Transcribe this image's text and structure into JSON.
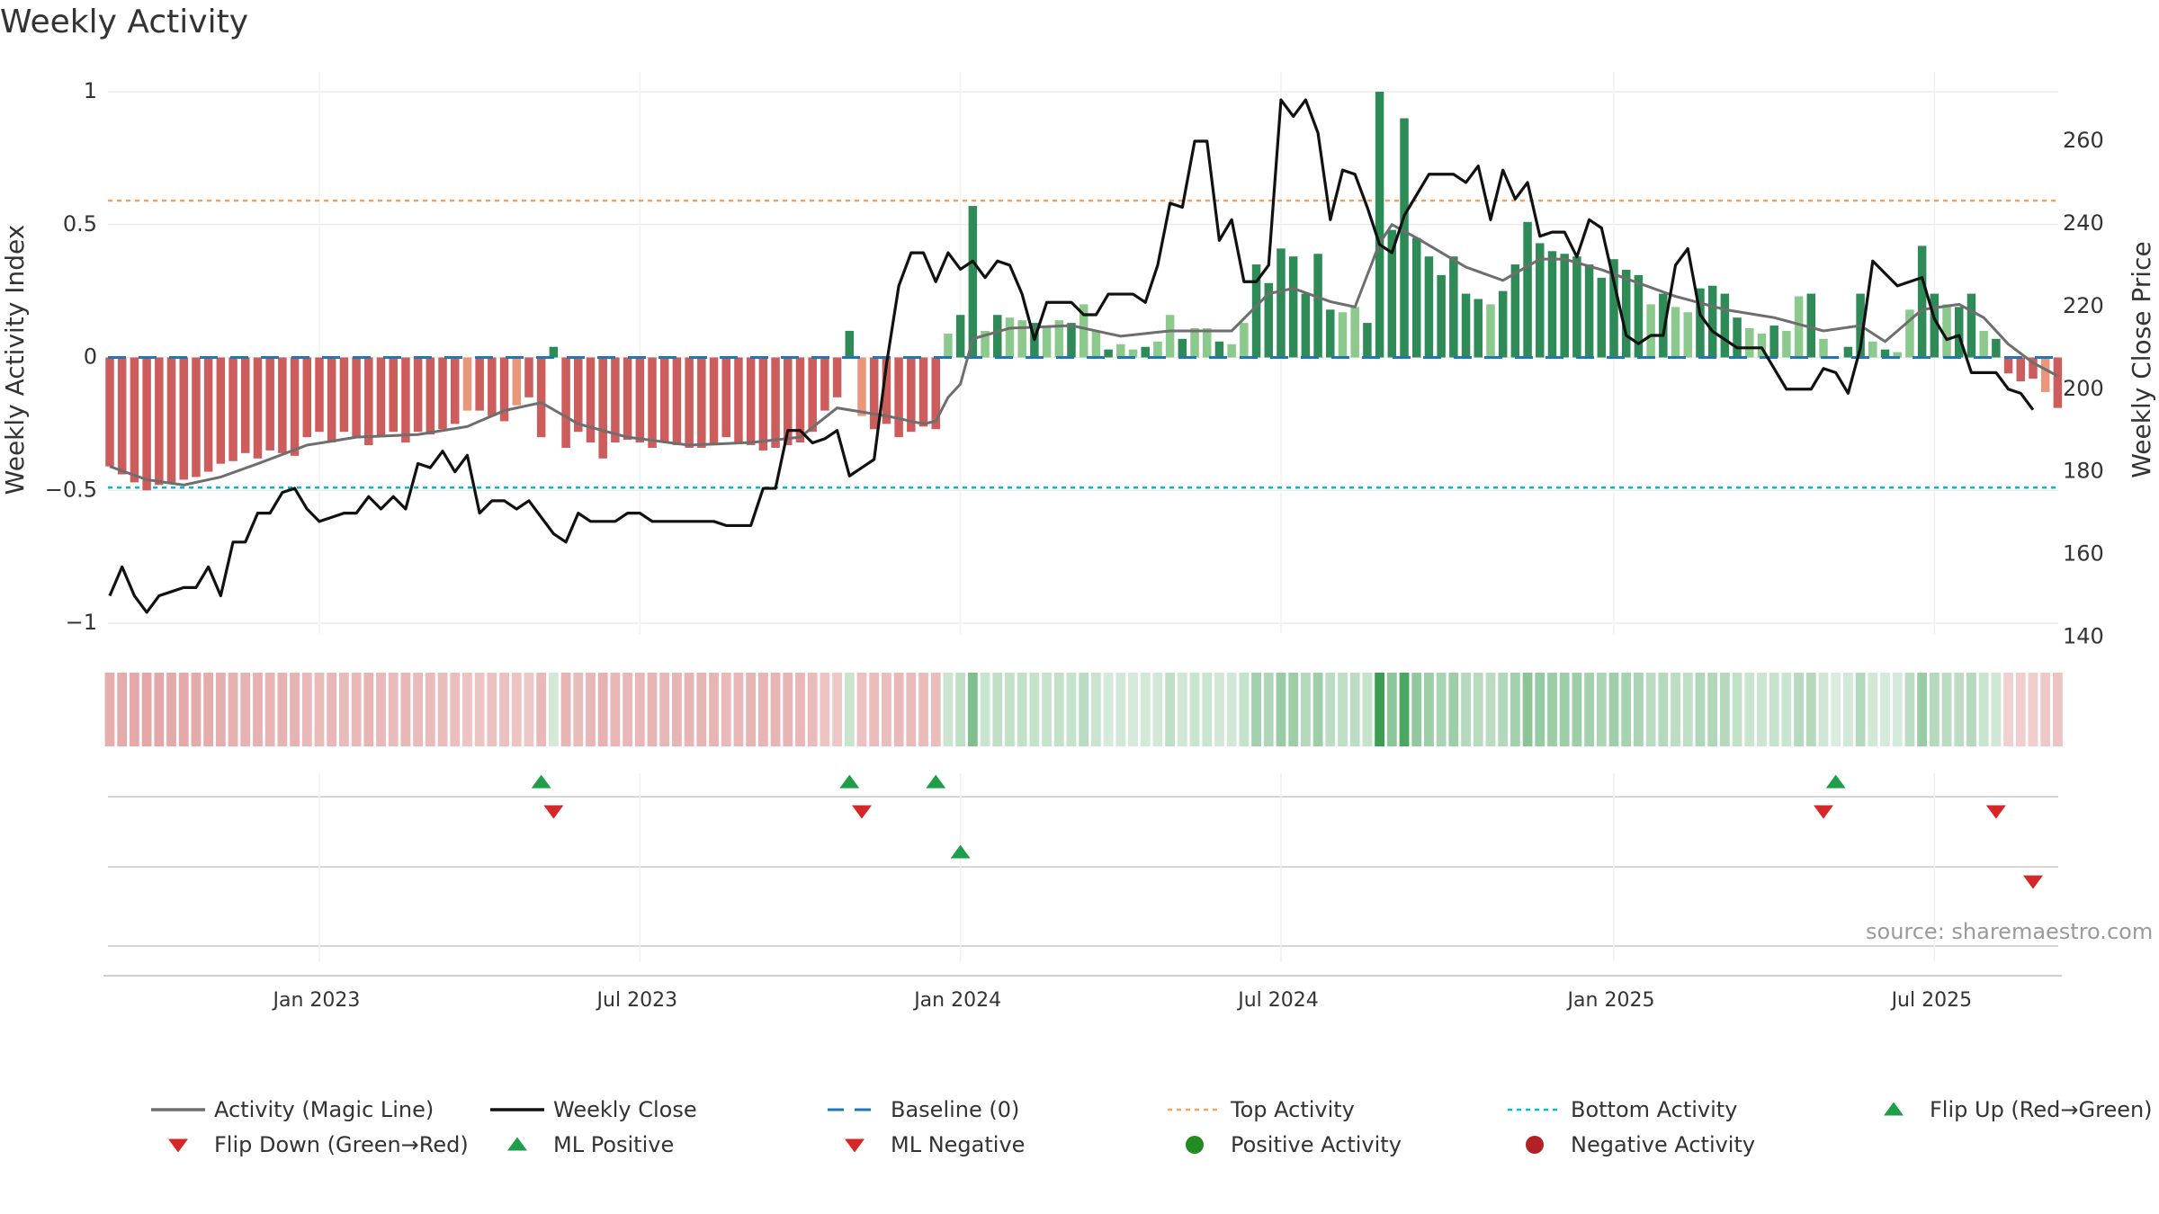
{
  "chart_data": {
    "type": "bar",
    "title": "Weekly Activity",
    "source": "source: sharemaestro.com",
    "ylabel_left": "Weekly Activity Index",
    "ylabel_right": "Weekly Close Price",
    "ylim_left": [
      -1.1,
      1.1
    ],
    "ylim_right": [
      133.2,
      278
    ],
    "left_ticks": [
      {
        "value": 1,
        "label": "1"
      },
      {
        "value": 0.5,
        "label": "0.5"
      },
      {
        "value": 0,
        "label": "0"
      },
      {
        "value": -0.5,
        "label": "−0.5"
      },
      {
        "value": -1,
        "label": "−1"
      }
    ],
    "right_ticks": [
      {
        "value": 260,
        "label": "260"
      },
      {
        "value": 240,
        "label": "240"
      },
      {
        "value": 220,
        "label": "220"
      },
      {
        "value": 200,
        "label": "200"
      },
      {
        "value": 180,
        "label": "180"
      },
      {
        "value": 160,
        "label": "160"
      },
      {
        "value": 140,
        "label": "140"
      }
    ],
    "x_ticks": [
      {
        "week": 17,
        "label": "Jan 2023"
      },
      {
        "week": 43,
        "label": "Jul 2023"
      },
      {
        "week": 69,
        "label": "Jan 2024"
      },
      {
        "week": 95,
        "label": "Jul 2024"
      },
      {
        "week": 122,
        "label": "Jan 2025"
      },
      {
        "week": 148,
        "label": "Jul 2025"
      }
    ],
    "week_count": 159,
    "activity_keys": [
      [
        0,
        -0.41
      ],
      [
        1,
        -0.44
      ],
      [
        2,
        -0.47
      ],
      [
        3,
        -0.5
      ],
      [
        4,
        -0.48
      ],
      [
        5,
        -0.47
      ],
      [
        6,
        -0.46
      ],
      [
        7,
        -0.45
      ],
      [
        8,
        -0.43
      ],
      [
        9,
        -0.4
      ],
      [
        10,
        -0.39
      ],
      [
        11,
        -0.36
      ],
      [
        12,
        -0.38
      ],
      [
        13,
        -0.35
      ],
      [
        14,
        -0.36
      ],
      [
        15,
        -0.37
      ],
      [
        16,
        -0.3
      ],
      [
        17,
        -0.28
      ],
      [
        18,
        -0.32
      ],
      [
        19,
        -0.28
      ],
      [
        20,
        -0.3
      ],
      [
        21,
        -0.33
      ],
      [
        22,
        -0.3
      ],
      [
        23,
        -0.28
      ],
      [
        24,
        -0.32
      ],
      [
        25,
        -0.28
      ],
      [
        26,
        -0.29
      ],
      [
        27,
        -0.27
      ],
      [
        28,
        -0.25
      ],
      [
        29,
        -0.2
      ],
      [
        30,
        -0.2
      ],
      [
        31,
        -0.22
      ],
      [
        32,
        -0.24
      ],
      [
        33,
        -0.18
      ],
      [
        34,
        -0.15
      ],
      [
        35,
        -0.3
      ],
      [
        36,
        0.04
      ],
      [
        37,
        -0.34
      ],
      [
        38,
        -0.28
      ],
      [
        39,
        -0.32
      ],
      [
        40,
        -0.38
      ],
      [
        41,
        -0.32
      ],
      [
        42,
        -0.31
      ],
      [
        43,
        -0.32
      ],
      [
        44,
        -0.34
      ],
      [
        45,
        -0.32
      ],
      [
        46,
        -0.33
      ],
      [
        47,
        -0.34
      ],
      [
        48,
        -0.34
      ],
      [
        49,
        -0.33
      ],
      [
        50,
        -0.3
      ],
      [
        51,
        -0.32
      ],
      [
        52,
        -0.33
      ],
      [
        53,
        -0.35
      ],
      [
        54,
        -0.34
      ],
      [
        55,
        -0.33
      ],
      [
        56,
        -0.32
      ],
      [
        57,
        -0.28
      ],
      [
        58,
        -0.2
      ],
      [
        59,
        -0.15
      ],
      [
        60,
        0.1
      ],
      [
        61,
        -0.22
      ],
      [
        62,
        -0.27
      ],
      [
        63,
        -0.25
      ],
      [
        64,
        -0.3
      ],
      [
        65,
        -0.28
      ],
      [
        66,
        -0.26
      ],
      [
        67,
        -0.27
      ],
      [
        68,
        0.09
      ],
      [
        69,
        0.16
      ],
      [
        70,
        0.57
      ],
      [
        71,
        0.1
      ],
      [
        72,
        0.16
      ],
      [
        73,
        0.15
      ],
      [
        74,
        0.14
      ],
      [
        75,
        0.13
      ],
      [
        76,
        0.12
      ],
      [
        77,
        0.14
      ],
      [
        78,
        0.13
      ],
      [
        79,
        0.2
      ],
      [
        80,
        0.1
      ],
      [
        81,
        0.03
      ],
      [
        82,
        0.05
      ],
      [
        83,
        0.03
      ],
      [
        84,
        0.04
      ],
      [
        85,
        0.06
      ],
      [
        86,
        0.16
      ],
      [
        87,
        0.07
      ],
      [
        88,
        0.11
      ],
      [
        89,
        0.11
      ],
      [
        90,
        0.06
      ],
      [
        91,
        0.05
      ],
      [
        92,
        0.13
      ],
      [
        93,
        0.35
      ],
      [
        94,
        0.28
      ],
      [
        95,
        0.41
      ],
      [
        96,
        0.38
      ],
      [
        97,
        0.24
      ],
      [
        98,
        0.39
      ],
      [
        99,
        0.18
      ],
      [
        100,
        0.17
      ],
      [
        101,
        0.19
      ],
      [
        102,
        0.13
      ],
      [
        103,
        1.0
      ],
      [
        104,
        0.48
      ],
      [
        105,
        0.9
      ],
      [
        106,
        0.45
      ],
      [
        107,
        0.38
      ],
      [
        108,
        0.31
      ],
      [
        109,
        0.38
      ],
      [
        110,
        0.24
      ],
      [
        111,
        0.22
      ],
      [
        112,
        0.2
      ],
      [
        113,
        0.25
      ],
      [
        114,
        0.35
      ],
      [
        115,
        0.51
      ],
      [
        116,
        0.43
      ],
      [
        117,
        0.4
      ],
      [
        118,
        0.39
      ],
      [
        119,
        0.38
      ],
      [
        120,
        0.35
      ],
      [
        121,
        0.3
      ],
      [
        122,
        0.37
      ],
      [
        123,
        0.33
      ],
      [
        124,
        0.31
      ],
      [
        125,
        0.2
      ],
      [
        126,
        0.24
      ],
      [
        127,
        0.19
      ],
      [
        128,
        0.17
      ],
      [
        129,
        0.26
      ],
      [
        130,
        0.27
      ],
      [
        131,
        0.24
      ],
      [
        132,
        0.15
      ],
      [
        133,
        0.11
      ],
      [
        134,
        0.09
      ],
      [
        135,
        0.12
      ],
      [
        136,
        0.1
      ],
      [
        137,
        0.23
      ],
      [
        138,
        0.24
      ],
      [
        139,
        0.07
      ],
      [
        140,
        0.0
      ],
      [
        141,
        0.04
      ],
      [
        142,
        0.24
      ],
      [
        143,
        0.06
      ],
      [
        144,
        0.03
      ],
      [
        145,
        0.02
      ],
      [
        146,
        0.18
      ],
      [
        147,
        0.42
      ],
      [
        148,
        0.24
      ],
      [
        149,
        0.2
      ],
      [
        150,
        0.19
      ],
      [
        151,
        0.24
      ],
      [
        152,
        0.1
      ],
      [
        153,
        0.07
      ],
      [
        154,
        -0.06
      ],
      [
        155,
        -0.09
      ],
      [
        156,
        -0.08
      ],
      [
        157,
        -0.13
      ],
      [
        158,
        -0.19
      ]
    ],
    "magic_line_keys": [
      [
        0,
        -0.41
      ],
      [
        3,
        -0.46
      ],
      [
        6,
        -0.48
      ],
      [
        9,
        -0.45
      ],
      [
        12,
        -0.4
      ],
      [
        16,
        -0.33
      ],
      [
        20,
        -0.3
      ],
      [
        25,
        -0.29
      ],
      [
        29,
        -0.26
      ],
      [
        32,
        -0.2
      ],
      [
        35,
        -0.17
      ],
      [
        38,
        -0.25
      ],
      [
        42,
        -0.3
      ],
      [
        47,
        -0.33
      ],
      [
        52,
        -0.32
      ],
      [
        56,
        -0.3
      ],
      [
        59,
        -0.19
      ],
      [
        63,
        -0.22
      ],
      [
        66,
        -0.25
      ],
      [
        67,
        -0.24
      ],
      [
        68,
        -0.15
      ],
      [
        69,
        -0.1
      ],
      [
        70,
        0.07
      ],
      [
        73,
        0.11
      ],
      [
        78,
        0.12
      ],
      [
        82,
        0.08
      ],
      [
        86,
        0.1
      ],
      [
        91,
        0.1
      ],
      [
        94,
        0.24
      ],
      [
        96,
        0.26
      ],
      [
        99,
        0.21
      ],
      [
        101,
        0.19
      ],
      [
        103,
        0.43
      ],
      [
        104,
        0.5
      ],
      [
        106,
        0.45
      ],
      [
        110,
        0.34
      ],
      [
        113,
        0.29
      ],
      [
        116,
        0.37
      ],
      [
        118,
        0.37
      ],
      [
        121,
        0.33
      ],
      [
        124,
        0.28
      ],
      [
        127,
        0.23
      ],
      [
        131,
        0.18
      ],
      [
        135,
        0.15
      ],
      [
        139,
        0.1
      ],
      [
        142,
        0.12
      ],
      [
        144,
        0.06
      ],
      [
        147,
        0.18
      ],
      [
        150,
        0.2
      ],
      [
        152,
        0.15
      ],
      [
        154,
        0.05
      ],
      [
        156,
        -0.02
      ],
      [
        158,
        -0.07
      ]
    ],
    "close_keys": [
      [
        0,
        150
      ],
      [
        1,
        157
      ],
      [
        2,
        150
      ],
      [
        3,
        146
      ],
      [
        4,
        150
      ],
      [
        5,
        151
      ],
      [
        6,
        152
      ],
      [
        7,
        152
      ],
      [
        8,
        157
      ],
      [
        9,
        150
      ],
      [
        10,
        163
      ],
      [
        11,
        163
      ],
      [
        12,
        170
      ],
      [
        13,
        170
      ],
      [
        14,
        175
      ],
      [
        15,
        176
      ],
      [
        16,
        171
      ],
      [
        17,
        168
      ],
      [
        18,
        169
      ],
      [
        19,
        170
      ],
      [
        20,
        170
      ],
      [
        21,
        174
      ],
      [
        22,
        171
      ],
      [
        23,
        174
      ],
      [
        24,
        171
      ],
      [
        25,
        182
      ],
      [
        26,
        181
      ],
      [
        27,
        185
      ],
      [
        28,
        180
      ],
      [
        29,
        184
      ],
      [
        30,
        170
      ],
      [
        31,
        173
      ],
      [
        32,
        173
      ],
      [
        33,
        171
      ],
      [
        34,
        173
      ],
      [
        35,
        169
      ],
      [
        36,
        165
      ],
      [
        37,
        163
      ],
      [
        38,
        170
      ],
      [
        39,
        168
      ],
      [
        40,
        168
      ],
      [
        41,
        168
      ],
      [
        42,
        170
      ],
      [
        43,
        170
      ],
      [
        44,
        168
      ],
      [
        45,
        168
      ],
      [
        46,
        168
      ],
      [
        47,
        168
      ],
      [
        48,
        168
      ],
      [
        49,
        168
      ],
      [
        50,
        167
      ],
      [
        51,
        167
      ],
      [
        52,
        167
      ],
      [
        53,
        176
      ],
      [
        54,
        176
      ],
      [
        55,
        190
      ],
      [
        56,
        190
      ],
      [
        57,
        187
      ],
      [
        58,
        188
      ],
      [
        59,
        190
      ],
      [
        60,
        179
      ],
      [
        61,
        181
      ],
      [
        62,
        183
      ],
      [
        63,
        206
      ],
      [
        64,
        225
      ],
      [
        65,
        233
      ],
      [
        66,
        233
      ],
      [
        67,
        226
      ],
      [
        68,
        233
      ],
      [
        69,
        229
      ],
      [
        70,
        231
      ],
      [
        71,
        227
      ],
      [
        72,
        231
      ],
      [
        73,
        230
      ],
      [
        74,
        223
      ],
      [
        75,
        212
      ],
      [
        76,
        221
      ],
      [
        77,
        221
      ],
      [
        78,
        221
      ],
      [
        79,
        218
      ],
      [
        80,
        218
      ],
      [
        81,
        223
      ],
      [
        82,
        223
      ],
      [
        83,
        223
      ],
      [
        84,
        221
      ],
      [
        85,
        230
      ],
      [
        86,
        245
      ],
      [
        87,
        244
      ],
      [
        88,
        260
      ],
      [
        89,
        260
      ],
      [
        90,
        236
      ],
      [
        91,
        241
      ],
      [
        92,
        226
      ],
      [
        93,
        226
      ],
      [
        94,
        230
      ],
      [
        95,
        270
      ],
      [
        96,
        266
      ],
      [
        97,
        270
      ],
      [
        98,
        262
      ],
      [
        99,
        241
      ],
      [
        100,
        253
      ],
      [
        101,
        252
      ],
      [
        102,
        244
      ],
      [
        103,
        235
      ],
      [
        104,
        233
      ],
      [
        105,
        242
      ],
      [
        106,
        247
      ],
      [
        107,
        252
      ],
      [
        108,
        252
      ],
      [
        109,
        252
      ],
      [
        110,
        250
      ],
      [
        111,
        254
      ],
      [
        112,
        241
      ],
      [
        113,
        253
      ],
      [
        114,
        246
      ],
      [
        115,
        250
      ],
      [
        116,
        237
      ],
      [
        117,
        238
      ],
      [
        118,
        238
      ],
      [
        119,
        232
      ],
      [
        120,
        241
      ],
      [
        121,
        239
      ],
      [
        122,
        226
      ],
      [
        123,
        213
      ],
      [
        124,
        211
      ],
      [
        125,
        213
      ],
      [
        126,
        213
      ],
      [
        127,
        230
      ],
      [
        128,
        234
      ],
      [
        129,
        218
      ],
      [
        130,
        214
      ],
      [
        131,
        212
      ],
      [
        132,
        210
      ],
      [
        133,
        210
      ],
      [
        134,
        210
      ],
      [
        135,
        205
      ],
      [
        136,
        200
      ],
      [
        137,
        200
      ],
      [
        138,
        200
      ],
      [
        139,
        205
      ],
      [
        140,
        204
      ],
      [
        141,
        199
      ],
      [
        142,
        210
      ],
      [
        143,
        231
      ],
      [
        144,
        228
      ],
      [
        145,
        225
      ],
      [
        146,
        226
      ],
      [
        147,
        227
      ],
      [
        148,
        217
      ],
      [
        149,
        212
      ],
      [
        150,
        213
      ],
      [
        151,
        204
      ],
      [
        152,
        204
      ],
      [
        153,
        204
      ],
      [
        154,
        200
      ],
      [
        155,
        199
      ],
      [
        156,
        195
      ]
    ],
    "threshold_lines": {
      "top": 0.59,
      "bottom": -0.49,
      "baseline": 0
    },
    "markers": [
      {
        "row": 1,
        "week": 35,
        "kind": "flip-up"
      },
      {
        "row": 1,
        "week": 36,
        "kind": "flip-down"
      },
      {
        "row": 1,
        "week": 60,
        "kind": "flip-up"
      },
      {
        "row": 1,
        "week": 61,
        "kind": "flip-down"
      },
      {
        "row": 1,
        "week": 67,
        "kind": "flip-up"
      },
      {
        "row": 1,
        "week": 139,
        "kind": "flip-down"
      },
      {
        "row": 1,
        "week": 140,
        "kind": "flip-up"
      },
      {
        "row": 1,
        "week": 153,
        "kind": "flip-down"
      },
      {
        "row": 2,
        "week": 69,
        "kind": "ml-positive"
      },
      {
        "row": 2,
        "week": 156,
        "kind": "ml-negative"
      }
    ],
    "legend_position": "bottom",
    "legend": [
      {
        "key": "magic",
        "label": "Activity (Magic Line)"
      },
      {
        "key": "close",
        "label": "Weekly Close"
      },
      {
        "key": "baseline",
        "label": "Baseline (0)"
      },
      {
        "key": "top",
        "label": "Top Activity"
      },
      {
        "key": "bottom",
        "label": "Bottom Activity"
      },
      {
        "key": "flip-up",
        "label": "Flip Up (Red→Green)"
      },
      {
        "key": "flip-down",
        "label": "Flip Down (Green→Red)"
      },
      {
        "key": "ml-positive",
        "label": "ML Positive"
      },
      {
        "key": "ml-negative",
        "label": "ML Negative"
      },
      {
        "key": "positive-dot",
        "label": "Positive Activity"
      },
      {
        "key": "negative-dot",
        "label": "Negative Activity"
      }
    ],
    "colors": {
      "pos_strong": "#2e8b57",
      "pos_light": "#8cc98c",
      "neg_strong": "#cd5c5c",
      "neg_light": "#e9967a",
      "magic": "#6e6e6e",
      "close": "#111111",
      "baseline": "#1f77b4",
      "top": "#f4a460",
      "bottom": "#00bcd4",
      "green_marker": "#1f9e4a",
      "red_marker": "#d62728",
      "pos_dot": "#228b22",
      "neg_dot": "#b22222"
    }
  }
}
